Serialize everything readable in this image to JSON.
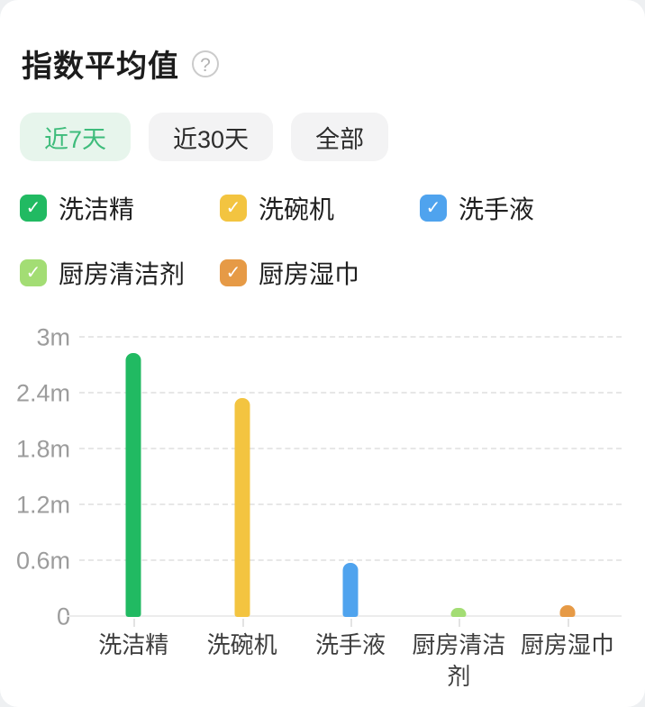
{
  "header": {
    "title": "指数平均值",
    "help_glyph": "?"
  },
  "tabs": {
    "items": [
      {
        "label": "近7天",
        "selected": true
      },
      {
        "label": "近30天",
        "selected": false
      },
      {
        "label": "全部",
        "selected": false
      }
    ]
  },
  "colors": {
    "selected_tab_bg": "#e7f5ec",
    "selected_tab_text": "#3ebc7b",
    "tab_bg": "#f3f3f4",
    "axis_label": "#9c9c9c",
    "gridline": "#e7e7e7",
    "axis_line": "#ececec"
  },
  "chart_data": {
    "type": "bar",
    "title": "指数平均值",
    "categories": [
      "洗洁精",
      "洗碗机",
      "洗手液",
      "厨房清洁剂",
      "厨房湿巾"
    ],
    "values": [
      2.84,
      2.35,
      0.58,
      0.1,
      0.13
    ],
    "unit": "m",
    "ylim": [
      0,
      3
    ],
    "ytick_labels": [
      "3m",
      "2.4m",
      "1.8m",
      "1.2m",
      "0.6m",
      "0"
    ],
    "ytick_values": [
      3,
      2.4,
      1.8,
      1.2,
      0.6,
      0
    ],
    "series_colors": [
      "#21ba62",
      "#f3c440",
      "#4fa3ee",
      "#a3dd74",
      "#e69a46"
    ],
    "legend": [
      {
        "label": "洗洁精",
        "color": "#21ba62",
        "checked": true
      },
      {
        "label": "洗碗机",
        "color": "#f3c440",
        "checked": true
      },
      {
        "label": "洗手液",
        "color": "#4fa3ee",
        "checked": true
      },
      {
        "label": "厨房清洁剂",
        "color": "#a3dd74",
        "checked": true
      },
      {
        "label": "厨房湿巾",
        "color": "#e69a46",
        "checked": true
      }
    ],
    "check_glyph": "✓",
    "grid": "horizontal-dashed",
    "legend_position": "top",
    "xlabel": "",
    "ylabel": ""
  }
}
